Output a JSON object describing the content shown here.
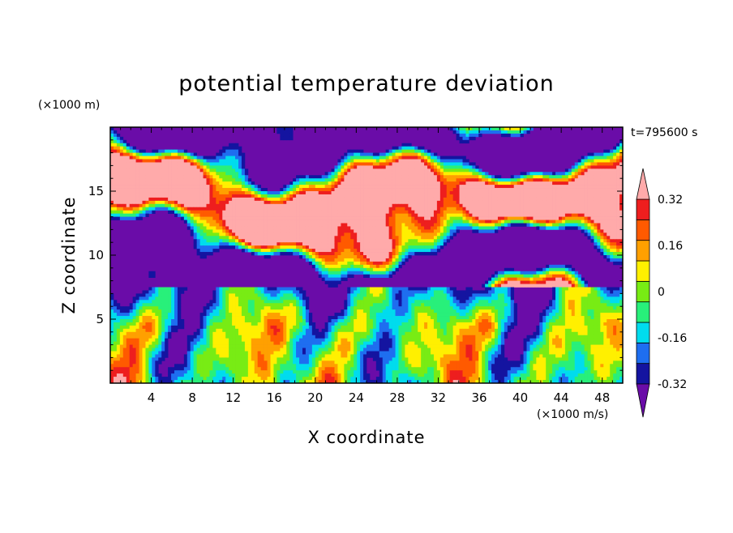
{
  "chart_data": {
    "type": "heatmap",
    "title": "potential temperature deviation",
    "xlabel": "X coordinate",
    "ylabel": "Z coordinate",
    "x_unit": "(×1000 m/s)",
    "y_unit": "(×1000 m)",
    "time_label": "t=795600 s",
    "xlim": [
      0,
      50
    ],
    "ylim": [
      0,
      20
    ],
    "x_ticks": [
      4,
      8,
      12,
      16,
      20,
      24,
      28,
      32,
      36,
      40,
      44,
      48
    ],
    "x_tick_labels": [
      "4",
      "8",
      "12",
      "16",
      "20",
      "24",
      "28",
      "32",
      "36",
      "40",
      "44",
      "48"
    ],
    "y_ticks": [
      5,
      10,
      15
    ],
    "y_tick_labels": [
      "5",
      "10",
      "15"
    ],
    "colorbar": {
      "levels": [
        -0.4,
        -0.32,
        -0.24,
        -0.16,
        -0.08,
        0,
        0.08,
        0.16,
        0.24,
        0.32,
        0.4
      ],
      "tick_values": [
        -0.32,
        -0.16,
        0,
        0.16,
        0.32
      ],
      "tick_labels": [
        "-0.32",
        "-0.16",
        "0",
        "0.16",
        "0.32"
      ],
      "colors": [
        "#6a0ca8",
        "#1414a0",
        "#1e6ef0",
        "#00dcee",
        "#28f07a",
        "#78ec14",
        "#fff000",
        "#ffa000",
        "#ff5a00",
        "#ee1e1e",
        "#ffaaaa"
      ],
      "extend": "both"
    }
  }
}
